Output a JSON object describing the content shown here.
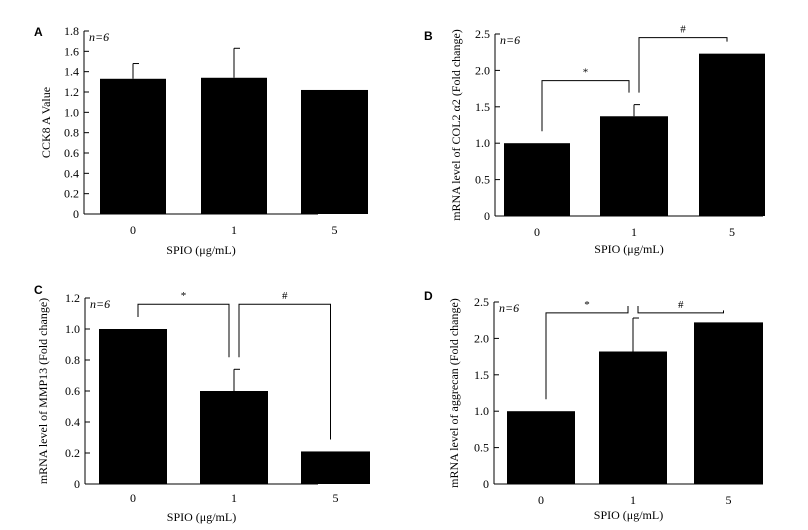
{
  "chart_data": [
    {
      "type": "bar",
      "panel_label": "A",
      "n_label": "n=6",
      "xlabel": "SPIO (μg/mL)",
      "ylabel": "CCK8 A Value",
      "categories": [
        "0",
        "1",
        "5"
      ],
      "values": [
        1.33,
        1.34,
        1.22
      ],
      "errors": [
        0.15,
        0.29,
        0
      ],
      "ylim": [
        0,
        1.8
      ],
      "yticks": [
        "0",
        "0.2",
        "0.4",
        "0.6",
        "0.8",
        "1.0",
        "1.2",
        "1.4",
        "1.6",
        "1.8"
      ],
      "significance": []
    },
    {
      "type": "bar",
      "panel_label": "B",
      "n_label": "n=6",
      "xlabel": "SPIO (μg/mL)",
      "ylabel": "mRNA level of COL2 α2 (Fold change)",
      "categories": [
        "0",
        "1",
        "5"
      ],
      "values": [
        1.0,
        1.37,
        2.23
      ],
      "errors": [
        0,
        0.16,
        0
      ],
      "ylim": [
        0,
        2.5
      ],
      "yticks": [
        "0",
        "0.5",
        "1.0",
        "1.5",
        "2.0",
        "2.5"
      ],
      "significance": [
        {
          "from": 0,
          "to": 1,
          "level": 1.86,
          "mark": "*"
        },
        {
          "from": 1,
          "to": 2,
          "level": 2.45,
          "mark": "#"
        }
      ]
    },
    {
      "type": "bar",
      "panel_label": "C",
      "n_label": "n=6",
      "xlabel": "SPIO (μg/mL)",
      "ylabel": "mRNA level of MMP13 (Fold change)",
      "categories": [
        "0",
        "1",
        "5"
      ],
      "values": [
        1.0,
        0.6,
        0.21
      ],
      "errors": [
        0,
        0.14,
        0
      ],
      "ylim": [
        0,
        1.2
      ],
      "yticks": [
        "0",
        "0.2",
        "0.4",
        "0.6",
        "0.8",
        "1.0",
        "1.2"
      ],
      "significance": [
        {
          "from": 0,
          "to": 1,
          "level": 1.16,
          "mark": "*"
        },
        {
          "from": 1,
          "to": 2,
          "level": 1.16,
          "mark": "#"
        }
      ]
    },
    {
      "type": "bar",
      "panel_label": "D",
      "n_label": "n=6",
      "xlabel": "SPIO (μg/mL)",
      "ylabel": "mRNA level of aggrecan (Fold change)",
      "categories": [
        "0",
        "1",
        "5"
      ],
      "values": [
        1.0,
        1.82,
        2.22
      ],
      "errors": [
        0,
        0.46,
        0
      ],
      "ylim": [
        0,
        2.5
      ],
      "yticks": [
        "0",
        "0.5",
        "1.0",
        "1.5",
        "2.0",
        "2.5"
      ],
      "significance": [
        {
          "from": 0,
          "to": 1,
          "level": 2.35,
          "mark": "*"
        },
        {
          "from": 1,
          "to": 2,
          "level": 2.35,
          "mark": "#"
        }
      ]
    }
  ]
}
